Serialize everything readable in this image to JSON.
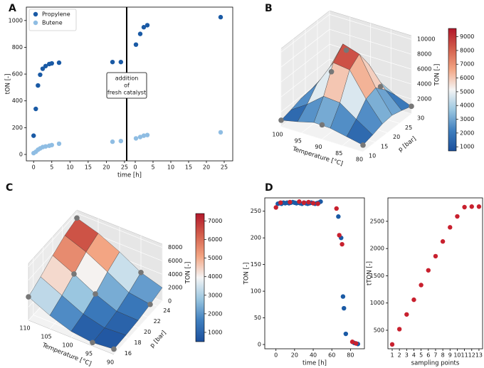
{
  "chart_data": [
    {
      "label": "A",
      "type": "scatter",
      "xlabel": "time [h]",
      "ylabel": "tON [-]",
      "ylim": [
        -48,
        1100
      ],
      "yticks": [
        0,
        200,
        400,
        600,
        800,
        1000
      ],
      "x_parts": [
        {
          "xlim": [
            -2,
            25.6
          ],
          "xticks": [
            0,
            5,
            10,
            15,
            20,
            25
          ]
        },
        {
          "xlim": [
            -2.4,
            27.4
          ],
          "xticks": [
            0,
            5,
            10,
            15,
            20,
            25
          ]
        }
      ],
      "legend": "upper left",
      "annotation": [
        "addition",
        "of",
        "fresh catalyst"
      ],
      "series": [
        {
          "name": "Propylene",
          "color": "#1a5aa5",
          "parts": [
            {
              "x": [
                0,
                0.6,
                1.2,
                1.8,
                2.5,
                3.3,
                4.3,
                5,
                7,
                21.7,
                24
              ],
              "values": [
                140,
                340,
                515,
                595,
                640,
                660,
                675,
                680,
                685,
                690,
                690
              ]
            },
            {
              "x": [
                0.2,
                1.4,
                2.4,
                3.4,
                24
              ],
              "values": [
                820,
                900,
                950,
                965,
                1025
              ]
            }
          ]
        },
        {
          "name": "Butene",
          "color": "#8fbde3",
          "parts": [
            {
              "x": [
                0,
                0.6,
                1.2,
                1.8,
                2.5,
                3.3,
                4.3,
                5,
                7,
                21.7,
                24
              ],
              "values": [
                10,
                20,
                35,
                45,
                55,
                60,
                65,
                70,
                80,
                95,
                100
              ]
            },
            {
              "x": [
                0.2,
                1.4,
                2.4,
                3.4,
                24
              ],
              "values": [
                120,
                130,
                140,
                145,
                165
              ]
            }
          ]
        }
      ]
    },
    {
      "label": "B",
      "type": "surface3d",
      "xlabel": "Temperature [°C]",
      "ylabel": "p [bar]",
      "zlabel": "TON [-]",
      "xlim": [
        80,
        100
      ],
      "xticks": [
        80,
        85,
        90,
        95,
        100
      ],
      "ylim": [
        10,
        30
      ],
      "yticks": [
        10,
        15,
        20,
        25,
        30
      ],
      "zlim": [
        0,
        10500
      ],
      "zticks": [
        2000,
        4000,
        6000,
        8000,
        10000
      ],
      "clim": [
        700,
        9600
      ],
      "cticks": [
        1000,
        2000,
        3000,
        4000,
        5000,
        6000,
        7000,
        8000,
        9000
      ],
      "colormap": [
        "#1b4f9c",
        "#3f7fbf",
        "#9ac6e0",
        "#f5f5f5",
        "#f3a583",
        "#d35f4c",
        "#b2182b"
      ],
      "surface": {
        "x": [
          80,
          84,
          88,
          92,
          96,
          100
        ],
        "y": [
          10,
          14,
          18,
          22,
          26,
          30
        ],
        "z": [
          [
            870,
            1230,
            1690,
            1830,
            1470,
            1020
          ],
          [
            1340,
            2660,
            4360,
            4850,
            3560,
            1890
          ],
          [
            1800,
            4200,
            7600,
            8700,
            6300,
            3100
          ],
          [
            1900,
            4400,
            7900,
            9400,
            6500,
            3000
          ],
          [
            1340,
            2660,
            4360,
            4850,
            3560,
            1890
          ],
          [
            870,
            1230,
            1690,
            1830,
            1470,
            1020
          ]
        ]
      },
      "points": {
        "x": [
          100,
          90,
          96,
          90,
          84,
          80,
          80
        ],
        "y": [
          10,
          10,
          24,
          20,
          24,
          10,
          30
        ],
        "z": [
          870,
          1920,
          4500,
          9400,
          4500,
          870,
          1020
        ]
      }
    },
    {
      "label": "C",
      "type": "surface3d",
      "xlabel": "Temperature [°C]",
      "ylabel": "p [bar]",
      "zlabel": "TON [-]",
      "xlim": [
        90,
        110
      ],
      "xticks": [
        90,
        95,
        100,
        105,
        110
      ],
      "ylim": [
        15,
        25
      ],
      "yticks": [
        16,
        18,
        20,
        22,
        24
      ],
      "zlim": [
        0,
        8500
      ],
      "zticks": [
        0,
        2000,
        4000,
        6000,
        8000
      ],
      "clim": [
        500,
        7400
      ],
      "cticks": [
        1000,
        2000,
        3000,
        4000,
        5000,
        6000,
        7000
      ],
      "colormap": [
        "#1b4f9c",
        "#3f7fbf",
        "#9ac6e0",
        "#f5f5f5",
        "#f3a583",
        "#d35f4c",
        "#b2182b"
      ],
      "surface": {
        "x": [
          90,
          95,
          100,
          105,
          110
        ],
        "y": [
          15,
          17.5,
          20,
          22.5,
          25
        ],
        "z": [
          [
            800,
            900,
            1100,
            1500,
            2000
          ],
          [
            500,
            700,
            1200,
            2000,
            3000
          ],
          [
            900,
            1500,
            2500,
            3800,
            4800
          ],
          [
            2000,
            3000,
            4200,
            5500,
            6300
          ],
          [
            3500,
            4500,
            5700,
            6700,
            7300
          ]
        ]
      },
      "points": {
        "x": [
          110,
          105,
          110,
          100,
          95,
          90,
          90,
          95
        ],
        "y": [
          15,
          20,
          25,
          20,
          15,
          15,
          22.5,
          25
        ],
        "z": [
          3500,
          4200,
          7300,
          2500,
          500,
          800,
          1500,
          3000
        ]
      }
    },
    {
      "label": "D",
      "type": "scatter",
      "xlabel": "time [h]",
      "ylabel": "TON [-]",
      "xlim": [
        -12,
        95
      ],
      "xticks": [
        0,
        20,
        40,
        60,
        80
      ],
      "ylim": [
        -8,
        275
      ],
      "yticks": [
        0,
        50,
        100,
        150,
        200,
        250
      ],
      "series": [
        {
          "color": "#1a5aa5",
          "x": [
            2,
            4,
            6,
            8,
            10,
            12,
            14,
            16,
            18,
            20,
            22,
            24,
            26,
            28,
            30,
            32,
            34,
            36,
            38,
            40,
            42,
            44,
            46,
            48,
            67,
            70,
            72,
            73,
            75,
            84,
            88
          ],
          "values": [
            264,
            265,
            264,
            266,
            265,
            266,
            265,
            266,
            267,
            266,
            265,
            266,
            265,
            264,
            266,
            265,
            264,
            265,
            266,
            265,
            264,
            265,
            266,
            268,
            240,
            200,
            90,
            68,
            20,
            3,
            1
          ]
        },
        {
          "color": "#c8202e",
          "x": [
            0,
            5,
            15,
            25,
            30,
            35,
            40,
            45,
            65,
            68,
            71,
            82,
            86
          ],
          "values": [
            257,
            266,
            267,
            268,
            266,
            267,
            265,
            264,
            255,
            205,
            188,
            5,
            2
          ]
        }
      ]
    },
    {
      "type": "scatter",
      "xlabel": "sampling points",
      "ylabel": "tTON [-]",
      "xlim": [
        0.41,
        13.5
      ],
      "xticks": [
        1,
        2,
        3,
        4,
        5,
        6,
        7,
        8,
        9,
        10,
        11,
        12,
        13
      ],
      "ylim": [
        160,
        2930
      ],
      "yticks": [
        500,
        1000,
        1500,
        2000,
        2500
      ],
      "series": [
        {
          "color": "#c8202e",
          "x": [
            1,
            2,
            3,
            4,
            5,
            6,
            7,
            8,
            9,
            10,
            11,
            12,
            13
          ],
          "values": [
            240,
            520,
            790,
            1060,
            1330,
            1600,
            1860,
            2130,
            2390,
            2590,
            2760,
            2770,
            2770
          ]
        }
      ]
    }
  ]
}
